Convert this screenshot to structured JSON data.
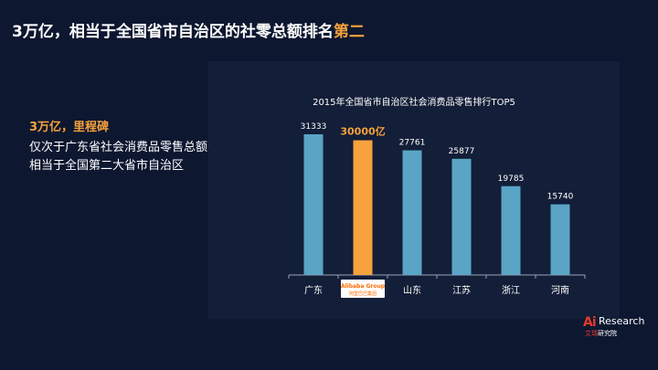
{
  "slide": {
    "title_main": "3万亿，相当于全国省市自治区的社零总额排名",
    "title_highlight": "第二"
  },
  "callout": {
    "heading": "3万亿，里程碑",
    "lines": [
      "仅次于广东省社会消费品零售总额，",
      "相当于全国第二大省市自治区"
    ]
  },
  "colors": {
    "background": "#0d1730",
    "panel": "#131e38",
    "bar": "#5aa4c6",
    "highlight": "#f7a23c"
  },
  "chart_data": {
    "type": "bar",
    "title": "2015年全国省市自治区社会消费品零售排行TOP5",
    "categories": [
      "广东",
      "Alibaba Group 阿里巴巴集团",
      "山东",
      "江苏",
      "浙江",
      "河南"
    ],
    "values": [
      31333,
      30000,
      27761,
      25877,
      19785,
      15740
    ],
    "value_labels": [
      "31333",
      "30000亿",
      "27761",
      "25877",
      "19785",
      "15740"
    ],
    "highlight_index": 1,
    "logo_category_index": 1,
    "xlabel": "",
    "ylabel": "",
    "ylim": [
      0,
      31333
    ],
    "grid": false,
    "legend": "none"
  },
  "brand": {
    "logo_mark": "Ai",
    "logo_word": "Research",
    "logo_cn_red": "艾瑞",
    "logo_cn_white": "研究院"
  }
}
